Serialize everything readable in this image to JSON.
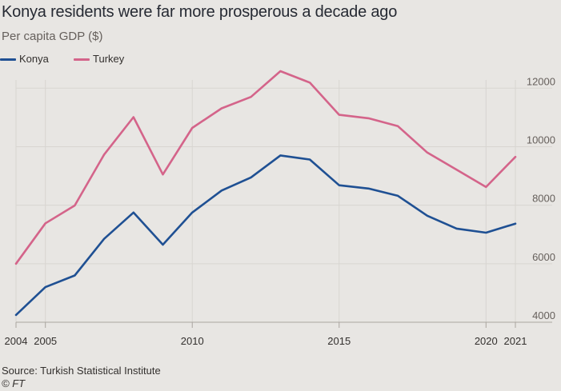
{
  "chart_data": {
    "type": "line",
    "title": "Konya residents were far more prosperous a decade ago",
    "subtitle": "Per capita GDP ($)",
    "xlabel": "",
    "ylabel": "Per capita GDP ($)",
    "x": [
      2004,
      2005,
      2006,
      2007,
      2008,
      2009,
      2010,
      2011,
      2012,
      2013,
      2014,
      2015,
      2016,
      2017,
      2018,
      2019,
      2020,
      2021
    ],
    "xticks": [
      2004,
      2005,
      2010,
      2015,
      2020,
      2021
    ],
    "xtick_labels": [
      "2004",
      "2005",
      "2010",
      "2015",
      "2020",
      "2021"
    ],
    "yticks": [
      4000,
      6000,
      8000,
      10000,
      12000
    ],
    "ytick_labels": [
      "4000",
      "6000",
      "8000",
      "10000",
      "12000"
    ],
    "xlim": [
      2004,
      2021
    ],
    "ylim": [
      4000,
      13100
    ],
    "grid": true,
    "legend_position": "top-left",
    "series": [
      {
        "name": "Konya",
        "color": "#1f5093",
        "values": [
          4250,
          5200,
          5600,
          6850,
          7750,
          6650,
          7750,
          8500,
          8950,
          9700,
          9560,
          8680,
          8570,
          8320,
          7640,
          7200,
          7060,
          7370
        ]
      },
      {
        "name": "Turkey",
        "color": "#d4648a",
        "values": [
          6000,
          7380,
          7990,
          9730,
          11010,
          9050,
          10640,
          11310,
          11700,
          12580,
          12190,
          11090,
          10970,
          10700,
          9800,
          9210,
          8620,
          9650
        ]
      }
    ]
  },
  "source": "Source: Turkish Statistical Institute",
  "credit": "© FT"
}
